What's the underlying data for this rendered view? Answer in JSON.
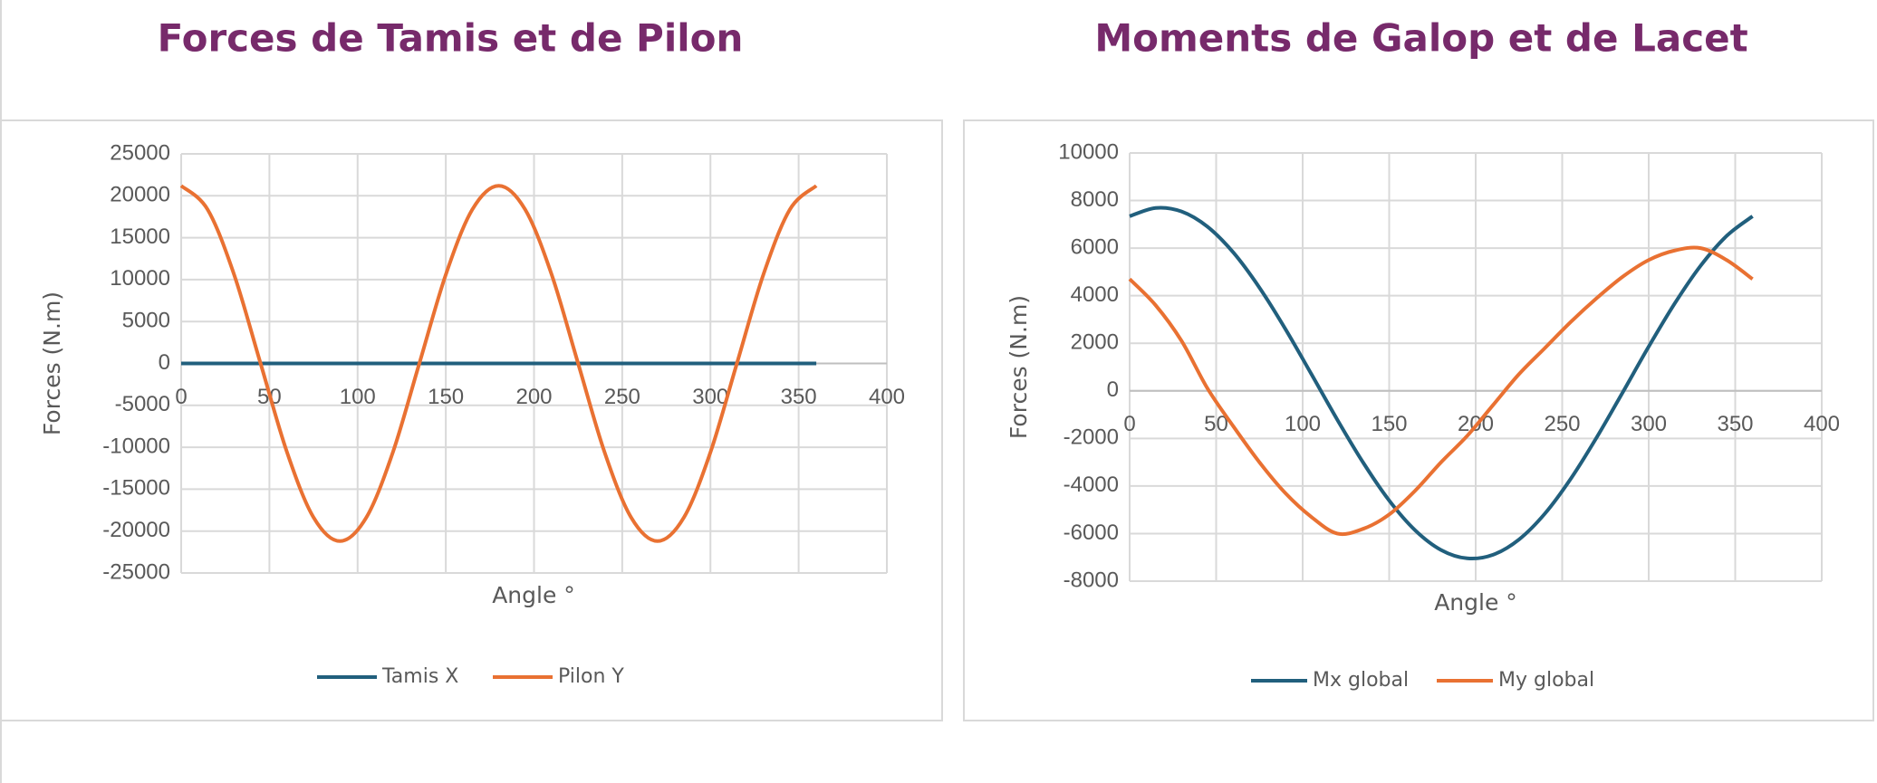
{
  "chart_data": [
    {
      "type": "line",
      "title": "Forces de Tamis et de Pilon",
      "x_label": "Angle °",
      "y_label": "Forces (N.m)",
      "x": [
        0,
        15,
        30,
        45,
        60,
        75,
        90,
        105,
        120,
        135,
        150,
        165,
        180,
        195,
        210,
        225,
        240,
        255,
        270,
        285,
        300,
        315,
        330,
        345,
        360
      ],
      "series": [
        {
          "name": "Tamis X",
          "color": "#215f7d",
          "values": [
            0,
            0,
            0,
            0,
            0,
            0,
            0,
            0,
            0,
            0,
            0,
            0,
            0,
            0,
            0,
            0,
            0,
            0,
            0,
            0,
            0,
            0,
            0,
            0,
            0
          ]
        },
        {
          "name": "Pilon Y",
          "color": "#e97132",
          "values": [
            21200,
            18360,
            10600,
            0,
            -10600,
            -18360,
            -21200,
            -18360,
            -10600,
            0,
            10600,
            18360,
            21200,
            18360,
            10600,
            0,
            -10600,
            -18360,
            -21200,
            -18360,
            -10600,
            0,
            10600,
            18360,
            21200
          ]
        }
      ],
      "xlim": [
        0,
        400
      ],
      "xticks": [
        0,
        50,
        100,
        150,
        200,
        250,
        300,
        350,
        400
      ],
      "ylim": [
        -25000,
        25000
      ],
      "yticks": [
        -25000,
        -20000,
        -15000,
        -10000,
        -5000,
        0,
        5000,
        10000,
        15000,
        20000,
        25000
      ],
      "grid": true,
      "legend": "bottom"
    },
    {
      "type": "line",
      "title": "Moments de Galop et de Lacet",
      "x_label": "Angle °",
      "y_label": "Forces (N.m)",
      "x": [
        0,
        15,
        30,
        45,
        60,
        75,
        90,
        105,
        120,
        135,
        150,
        165,
        180,
        195,
        210,
        225,
        240,
        255,
        270,
        285,
        300,
        315,
        330,
        345,
        360
      ],
      "series": [
        {
          "name": "Mx global",
          "color": "#215f7d",
          "values": [
            7340,
            7690,
            7540,
            6900,
            5810,
            4340,
            2600,
            710,
            -1210,
            -3020,
            -4610,
            -5860,
            -6690,
            -7040,
            -6890,
            -6250,
            -5160,
            -3690,
            -1950,
            -60,
            1860,
            3670,
            5260,
            6510,
            7340
          ]
        },
        {
          "name": "My global",
          "color": "#e97132",
          "values": [
            4700,
            3600,
            2100,
            100,
            -1500,
            -3000,
            -4300,
            -5300,
            -6000,
            -5800,
            -5200,
            -4200,
            -3000,
            -1900,
            -600,
            700,
            1800,
            2900,
            3900,
            4800,
            5500,
            5900,
            6000,
            5500,
            4700
          ]
        }
      ],
      "xlim": [
        0,
        400
      ],
      "xticks": [
        0,
        50,
        100,
        150,
        200,
        250,
        300,
        350,
        400
      ],
      "ylim": [
        -8000,
        10000
      ],
      "yticks": [
        -8000,
        -6000,
        -4000,
        -2000,
        0,
        2000,
        4000,
        6000,
        8000,
        10000
      ],
      "grid": true,
      "legend": "bottom"
    }
  ]
}
